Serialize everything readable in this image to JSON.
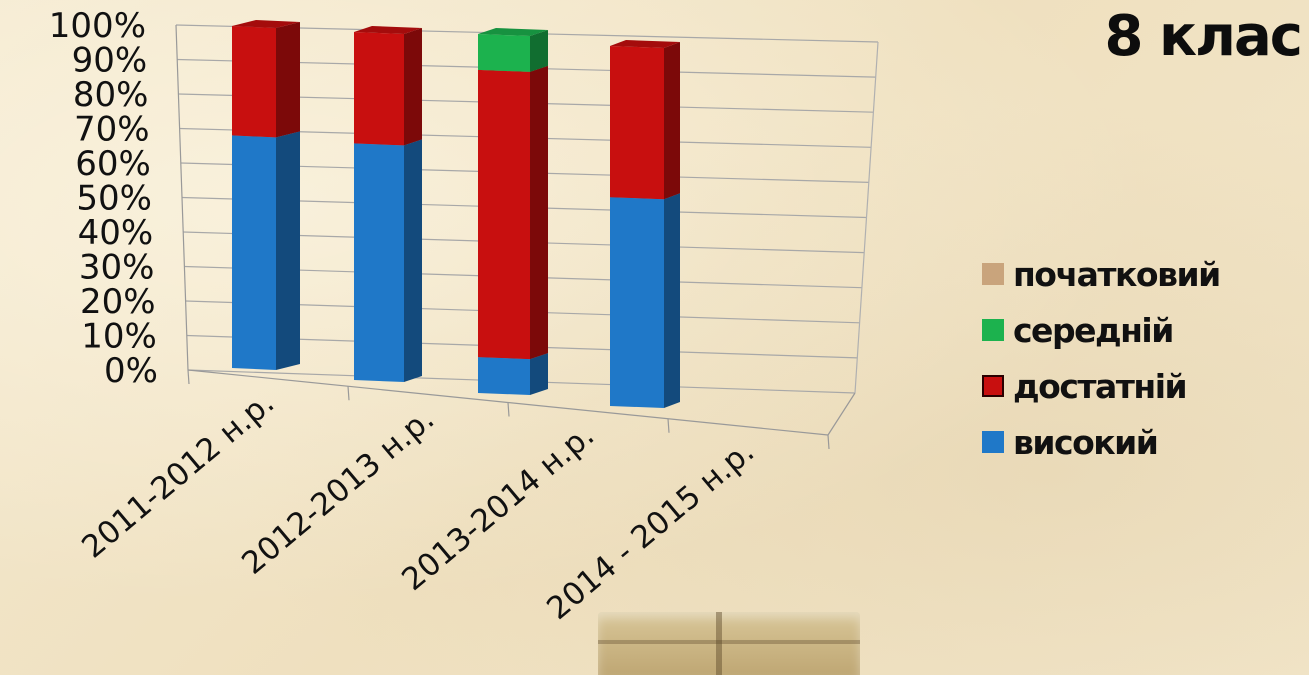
{
  "chart_data": {
    "type": "bar",
    "stacked": true,
    "percent_stacked": true,
    "three_d": true,
    "title": "8 клас",
    "categories": [
      "2011-2012 н.р.",
      "2012-2013 н.р.",
      "2013-2014 н.р.",
      "2014 - 2015 н.р."
    ],
    "series": [
      {
        "name": "високий",
        "color": "#1f78c8",
        "values": [
          68,
          68,
          10,
          58
        ]
      },
      {
        "name": "достатній",
        "color": "#c80f0f",
        "values": [
          32,
          32,
          80,
          42
        ]
      },
      {
        "name": "середній",
        "color": "#1cb24e",
        "values": [
          0,
          0,
          10,
          0
        ]
      },
      {
        "name": "початковий",
        "color": "#c9a47c",
        "values": [
          0,
          0,
          0,
          0
        ]
      }
    ],
    "y_ticks": [
      "0%",
      "10%",
      "20%",
      "30%",
      "40%",
      "50%",
      "60%",
      "70%",
      "80%",
      "90%",
      "100%"
    ],
    "ylim": [
      0,
      100
    ],
    "grid": true,
    "legend_position": "right"
  }
}
